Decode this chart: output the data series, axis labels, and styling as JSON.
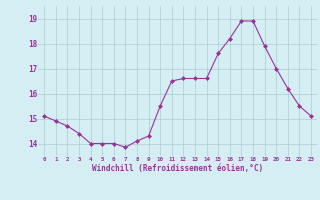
{
  "x": [
    0,
    1,
    2,
    3,
    4,
    5,
    6,
    7,
    8,
    9,
    10,
    11,
    12,
    13,
    14,
    15,
    16,
    17,
    18,
    19,
    20,
    21,
    22,
    23
  ],
  "y": [
    15.1,
    14.9,
    14.7,
    14.4,
    14.0,
    14.0,
    14.0,
    13.85,
    14.1,
    14.3,
    15.5,
    16.5,
    16.6,
    16.6,
    16.6,
    17.6,
    18.2,
    18.9,
    18.9,
    17.9,
    17.0,
    16.2,
    15.5,
    15.1
  ],
  "line_color": "#993399",
  "marker": "D",
  "marker_size": 2,
  "xlim": [
    -0.5,
    23.5
  ],
  "ylim": [
    13.5,
    19.5
  ],
  "yticks": [
    14,
    15,
    16,
    17,
    18,
    19
  ],
  "xticks": [
    0,
    1,
    2,
    3,
    4,
    5,
    6,
    7,
    8,
    9,
    10,
    11,
    12,
    13,
    14,
    15,
    16,
    17,
    18,
    19,
    20,
    21,
    22,
    23
  ],
  "xlabel": "Windchill (Refroidissement éolien,°C)",
  "bg_color": "#d4eef4",
  "grid_color": "#aacccc",
  "tick_label_color": "#993399",
  "axis_label_color": "#993399"
}
